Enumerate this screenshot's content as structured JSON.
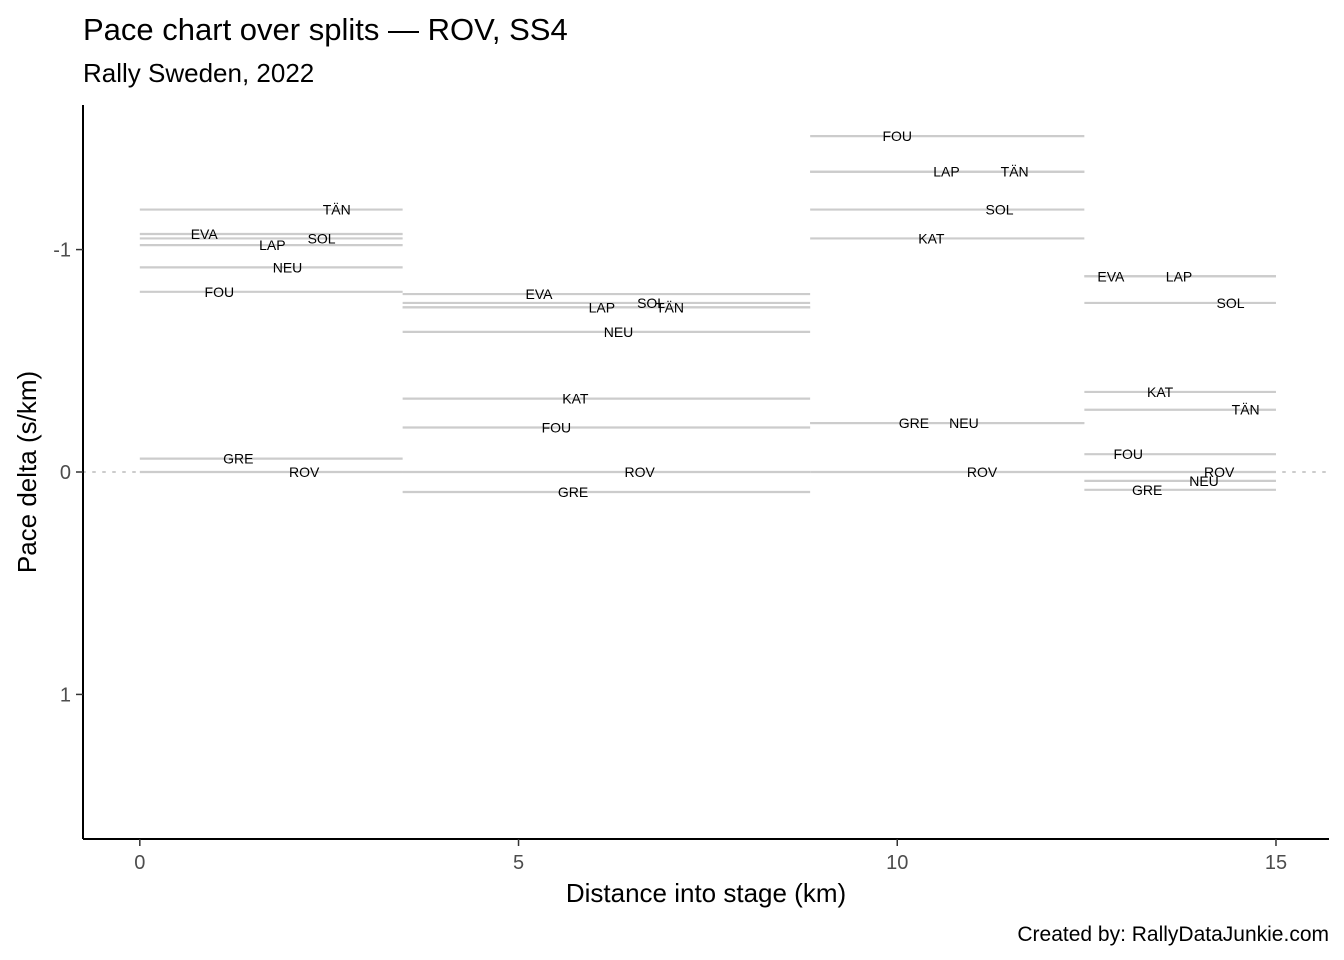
{
  "chart_data": {
    "type": "line",
    "title": "Pace chart over splits — ROV, SS4",
    "subtitle": "Rally Sweden, 2022",
    "xlabel": "Distance into stage (km)",
    "ylabel": "Pace delta (s/km)",
    "caption": "Created by: RallyDataJunkie.com",
    "xlim": [
      -0.75,
      15.7
    ],
    "ylim": [
      1.65,
      -1.65
    ],
    "y_axis_reversed": true,
    "x_ticks": [
      0,
      5,
      10,
      15
    ],
    "y_ticks": [
      -1,
      0,
      1
    ],
    "y_tick_labels": [
      "-1",
      "0",
      "1"
    ],
    "reference_line": {
      "y": 0,
      "style": "dotted",
      "color": "#cccccc"
    },
    "grid": false,
    "segment_color": "#cccccc",
    "splits": [
      {
        "x_start": 0,
        "x_end": 3.47,
        "drivers": [
          {
            "name": "TÄN",
            "value": -1.18,
            "label_x": 2.6
          },
          {
            "name": "EVA",
            "value": -1.07,
            "label_x": 0.85
          },
          {
            "name": "SOL",
            "value": -1.05,
            "label_x": 2.4
          },
          {
            "name": "LAP",
            "value": -1.02,
            "label_x": 1.75
          },
          {
            "name": "NEU",
            "value": -0.92,
            "label_x": 1.95
          },
          {
            "name": "FOU",
            "value": -0.81,
            "label_x": 1.05
          },
          {
            "name": "GRE",
            "value": -0.06,
            "label_x": 1.3
          },
          {
            "name": "ROV",
            "value": 0,
            "label_x": 2.17
          }
        ]
      },
      {
        "x_start": 3.47,
        "x_end": 8.85,
        "drivers": [
          {
            "name": "EVA",
            "value": -0.8,
            "label_x": 5.27
          },
          {
            "name": "SOL",
            "value": -0.76,
            "label_x": 6.75
          },
          {
            "name": "LAP",
            "value": -0.74,
            "label_x": 6.1
          },
          {
            "name": "TÄN",
            "value": -0.74,
            "label_x": 7.0
          },
          {
            "name": "NEU",
            "value": -0.63,
            "label_x": 6.32
          },
          {
            "name": "KAT",
            "value": -0.33,
            "label_x": 5.75
          },
          {
            "name": "FOU",
            "value": -0.2,
            "label_x": 5.5
          },
          {
            "name": "ROV",
            "value": 0,
            "label_x": 6.6
          },
          {
            "name": "GRE",
            "value": 0.09,
            "label_x": 5.72
          }
        ]
      },
      {
        "x_start": 8.85,
        "x_end": 12.47,
        "drivers": [
          {
            "name": "FOU",
            "value": -1.51,
            "label_x": 10.0
          },
          {
            "name": "LAP",
            "value": -1.35,
            "label_x": 10.65
          },
          {
            "name": "TÄN",
            "value": -1.35,
            "label_x": 11.55
          },
          {
            "name": "SOL",
            "value": -1.18,
            "label_x": 11.35
          },
          {
            "name": "KAT",
            "value": -1.05,
            "label_x": 10.45
          },
          {
            "name": "GRE",
            "value": -0.22,
            "label_x": 10.22
          },
          {
            "name": "NEU",
            "value": -0.22,
            "label_x": 10.88
          },
          {
            "name": "ROV",
            "value": 0,
            "label_x": 11.12
          }
        ]
      },
      {
        "x_start": 12.47,
        "x_end": 15.0,
        "drivers": [
          {
            "name": "EVA",
            "value": -0.88,
            "label_x": 12.82
          },
          {
            "name": "LAP",
            "value": -0.88,
            "label_x": 13.72
          },
          {
            "name": "SOL",
            "value": -0.76,
            "label_x": 14.4
          },
          {
            "name": "KAT",
            "value": -0.36,
            "label_x": 13.47
          },
          {
            "name": "TÄN",
            "value": -0.28,
            "label_x": 14.6
          },
          {
            "name": "FOU",
            "value": -0.08,
            "label_x": 13.05
          },
          {
            "name": "ROV",
            "value": 0,
            "label_x": 14.25
          },
          {
            "name": "NEU",
            "value": 0.04,
            "label_x": 14.05
          },
          {
            "name": "GRE",
            "value": 0.08,
            "label_x": 13.3
          }
        ]
      }
    ]
  }
}
